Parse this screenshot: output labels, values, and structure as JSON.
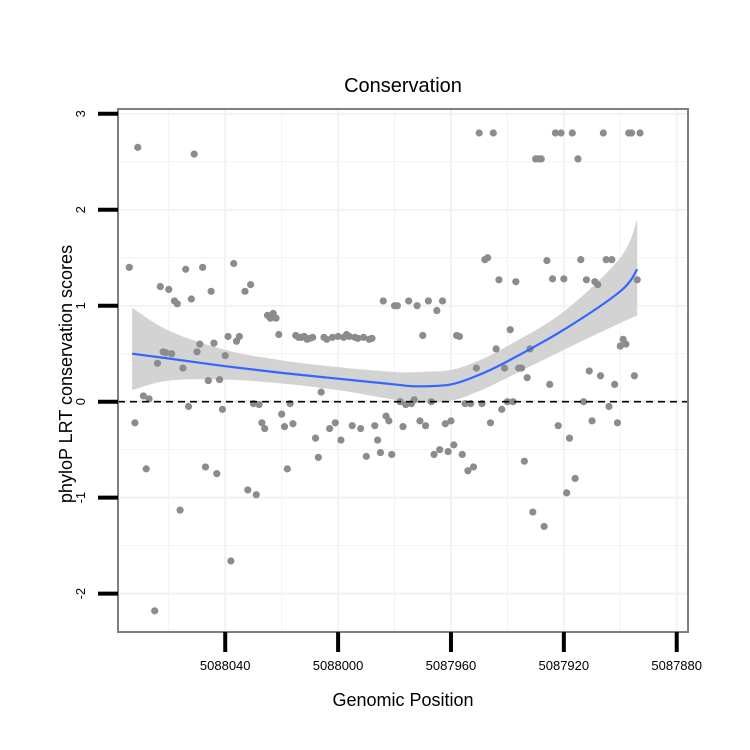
{
  "chart_data": {
    "type": "scatter",
    "title": "Conservation",
    "xlabel": "Genomic Position",
    "ylabel": "phyloP LRT conservation scores",
    "xlim": [
      5088078,
      5087876
    ],
    "ylim": [
      -2.4,
      3.05
    ],
    "x_reversed": true,
    "x_ticks": [
      5088040,
      5088000,
      5087960,
      5087920,
      5087880
    ],
    "x_tick_labels": [
      "5088040",
      "5088000",
      "5087960",
      "5087920",
      "5087880"
    ],
    "y_ticks": [
      -2,
      -1,
      0,
      1,
      2,
      3
    ],
    "y_tick_labels": [
      "-2",
      "-1",
      "0",
      "1",
      "2",
      "3"
    ],
    "x_minor_grid": [
      5088060,
      5088020,
      5087980,
      5087940,
      5087900
    ],
    "y_minor_grid": [
      -1.5,
      -0.5,
      0.5,
      1.5,
      2.5
    ],
    "grid": true,
    "reference_line": {
      "y": 0,
      "style": "dashed"
    },
    "colors": {
      "points": "#8c8c8c",
      "smooth": "#3366ff",
      "ribbon": "#d3d3d3",
      "panel_border": "#7f7f7f",
      "grid": "#f2f2f2",
      "ref_line": "#000000"
    },
    "series": [
      {
        "name": "scores",
        "points": [
          [
            5088074,
            1.4
          ],
          [
            5088072,
            -0.22
          ],
          [
            5088071,
            2.65
          ],
          [
            5088069,
            0.06
          ],
          [
            5088068,
            -0.7
          ],
          [
            5088067,
            0.03
          ],
          [
            5088065,
            -2.18
          ],
          [
            5088064,
            0.4
          ],
          [
            5088063,
            1.2
          ],
          [
            5088062,
            0.52
          ],
          [
            5088061,
            0.51
          ],
          [
            5088060,
            1.17
          ],
          [
            5088059,
            0.5
          ],
          [
            5088058,
            1.05
          ],
          [
            5088057,
            1.02
          ],
          [
            5088056,
            -1.13
          ],
          [
            5088055,
            0.35
          ],
          [
            5088054,
            1.38
          ],
          [
            5088053,
            -0.05
          ],
          [
            5088052,
            1.07
          ],
          [
            5088051,
            2.58
          ],
          [
            5088050,
            0.52
          ],
          [
            5088049,
            0.6
          ],
          [
            5088048,
            1.4
          ],
          [
            5088047,
            -0.68
          ],
          [
            5088046,
            0.22
          ],
          [
            5088045,
            1.15
          ],
          [
            5088044,
            0.61
          ],
          [
            5088043,
            -0.75
          ],
          [
            5088042,
            0.23
          ],
          [
            5088041,
            -0.08
          ],
          [
            5088040,
            0.48
          ],
          [
            5088039,
            0.68
          ],
          [
            5088038,
            -1.66
          ],
          [
            5088037,
            1.44
          ],
          [
            5088036,
            0.63
          ],
          [
            5088035,
            0.68
          ],
          [
            5088033,
            1.15
          ],
          [
            5088032,
            -0.92
          ],
          [
            5088031,
            1.22
          ],
          [
            5088030,
            -0.02
          ],
          [
            5088029,
            -0.97
          ],
          [
            5088028,
            -0.03
          ],
          [
            5088027,
            -0.22
          ],
          [
            5088026,
            -0.28
          ],
          [
            5088025,
            0.9
          ],
          [
            5088024,
            0.87
          ],
          [
            5088023,
            0.92
          ],
          [
            5088022,
            0.87
          ],
          [
            5088021,
            0.7
          ],
          [
            5088020,
            -0.13
          ],
          [
            5088019,
            -0.26
          ],
          [
            5088018,
            -0.7
          ],
          [
            5088017,
            -0.02
          ],
          [
            5088016,
            -0.23
          ],
          [
            5088015,
            0.69
          ],
          [
            5088014,
            0.67
          ],
          [
            5088013,
            0.67
          ],
          [
            5088012,
            0.68
          ],
          [
            5088011,
            0.65
          ],
          [
            5088010,
            0.66
          ],
          [
            5088009,
            0.67
          ],
          [
            5088008,
            -0.38
          ],
          [
            5088007,
            -0.58
          ],
          [
            5088006,
            0.1
          ],
          [
            5088005,
            0.67
          ],
          [
            5088004,
            0.65
          ],
          [
            5088003,
            -0.28
          ],
          [
            5088002,
            0.67
          ],
          [
            5088001,
            -0.22
          ],
          [
            5088000,
            0.68
          ],
          [
            5087999,
            -0.4
          ],
          [
            5087998,
            0.67
          ],
          [
            5087997,
            0.7
          ],
          [
            5087996,
            0.68
          ],
          [
            5087995,
            -0.25
          ],
          [
            5087994,
            0.67
          ],
          [
            5087993,
            0.66
          ],
          [
            5087992,
            -0.28
          ],
          [
            5087991,
            0.67
          ],
          [
            5087990,
            -0.57
          ],
          [
            5087989,
            0.65
          ],
          [
            5087988,
            0.66
          ],
          [
            5087987,
            -0.25
          ],
          [
            5087986,
            -0.4
          ],
          [
            5087985,
            -0.53
          ],
          [
            5087984,
            1.05
          ],
          [
            5087983,
            -0.15
          ],
          [
            5087982,
            -0.2
          ],
          [
            5087981,
            -0.55
          ],
          [
            5087980,
            1.0
          ],
          [
            5087979,
            1.0
          ],
          [
            5087978,
            0.0
          ],
          [
            5087977,
            -0.26
          ],
          [
            5087976,
            -0.03
          ],
          [
            5087975,
            1.05
          ],
          [
            5087974,
            -0.02
          ],
          [
            5087973,
            0.02
          ],
          [
            5087972,
            1.0
          ],
          [
            5087971,
            -0.2
          ],
          [
            5087970,
            0.69
          ],
          [
            5087969,
            -0.25
          ],
          [
            5087968,
            1.05
          ],
          [
            5087967,
            0.0
          ],
          [
            5087966,
            -0.55
          ],
          [
            5087965,
            0.95
          ],
          [
            5087964,
            -0.5
          ],
          [
            5087963,
            1.05
          ],
          [
            5087962,
            -0.23
          ],
          [
            5087961,
            -0.52
          ],
          [
            5087960,
            -0.2
          ],
          [
            5087959,
            -0.45
          ],
          [
            5087958,
            0.69
          ],
          [
            5087957,
            0.68
          ],
          [
            5087956,
            -0.55
          ],
          [
            5087955,
            -0.02
          ],
          [
            5087954,
            -0.72
          ],
          [
            5087953,
            -0.02
          ],
          [
            5087952,
            -0.68
          ],
          [
            5087951,
            0.35
          ],
          [
            5087950,
            2.8
          ],
          [
            5087949,
            -0.02
          ],
          [
            5087948,
            1.48
          ],
          [
            5087947,
            1.5
          ],
          [
            5087946,
            -0.22
          ],
          [
            5087945,
            2.8
          ],
          [
            5087944,
            0.55
          ],
          [
            5087943,
            1.27
          ],
          [
            5087942,
            -0.08
          ],
          [
            5087941,
            0.35
          ],
          [
            5087940,
            0.0
          ],
          [
            5087939,
            0.75
          ],
          [
            5087938,
            0.0
          ],
          [
            5087937,
            1.25
          ],
          [
            5087936,
            0.35
          ],
          [
            5087935,
            0.35
          ],
          [
            5087934,
            -0.62
          ],
          [
            5087933,
            0.25
          ],
          [
            5087932,
            0.55
          ],
          [
            5087931,
            -1.15
          ],
          [
            5087930,
            2.53
          ],
          [
            5087929,
            2.53
          ],
          [
            5087928,
            2.53
          ],
          [
            5087927,
            -1.3
          ],
          [
            5087926,
            1.47
          ],
          [
            5087925,
            0.18
          ],
          [
            5087924,
            1.28
          ],
          [
            5087923,
            2.8
          ],
          [
            5087922,
            -0.25
          ],
          [
            5087921,
            2.8
          ],
          [
            5087920,
            1.28
          ],
          [
            5087919,
            -0.95
          ],
          [
            5087918,
            -0.38
          ],
          [
            5087917,
            2.8
          ],
          [
            5087916,
            -0.8
          ],
          [
            5087915,
            2.53
          ],
          [
            5087914,
            1.48
          ],
          [
            5087913,
            0.0
          ],
          [
            5087912,
            1.27
          ],
          [
            5087911,
            0.32
          ],
          [
            5087910,
            -0.2
          ],
          [
            5087909,
            1.25
          ],
          [
            5087908,
            1.22
          ],
          [
            5087907,
            0.27
          ],
          [
            5087906,
            2.8
          ],
          [
            5087905,
            1.48
          ],
          [
            5087904,
            -0.05
          ],
          [
            5087903,
            1.48
          ],
          [
            5087902,
            0.18
          ],
          [
            5087901,
            -0.22
          ],
          [
            5087900,
            0.58
          ],
          [
            5087899,
            0.65
          ],
          [
            5087898,
            0.6
          ],
          [
            5087897,
            2.8
          ],
          [
            5087896,
            2.8
          ],
          [
            5087895,
            0.27
          ],
          [
            5087894,
            1.27
          ],
          [
            5087893,
            2.8
          ]
        ]
      }
    ],
    "smooth": {
      "x": [
        5088073,
        5088060,
        5088040,
        5088020,
        5088000,
        5087980,
        5087972,
        5087960,
        5087950,
        5087940,
        5087920,
        5087900,
        5087894
      ],
      "y": [
        0.5,
        0.45,
        0.37,
        0.3,
        0.24,
        0.18,
        0.16,
        0.18,
        0.28,
        0.42,
        0.75,
        1.15,
        1.38
      ],
      "lower": [
        0.12,
        0.22,
        0.23,
        0.19,
        0.12,
        0.02,
        -0.01,
        0.01,
        0.11,
        0.25,
        0.54,
        0.82,
        0.9
      ],
      "upper": [
        0.98,
        0.74,
        0.54,
        0.43,
        0.36,
        0.31,
        0.31,
        0.33,
        0.43,
        0.58,
        0.94,
        1.5,
        1.9
      ]
    }
  }
}
